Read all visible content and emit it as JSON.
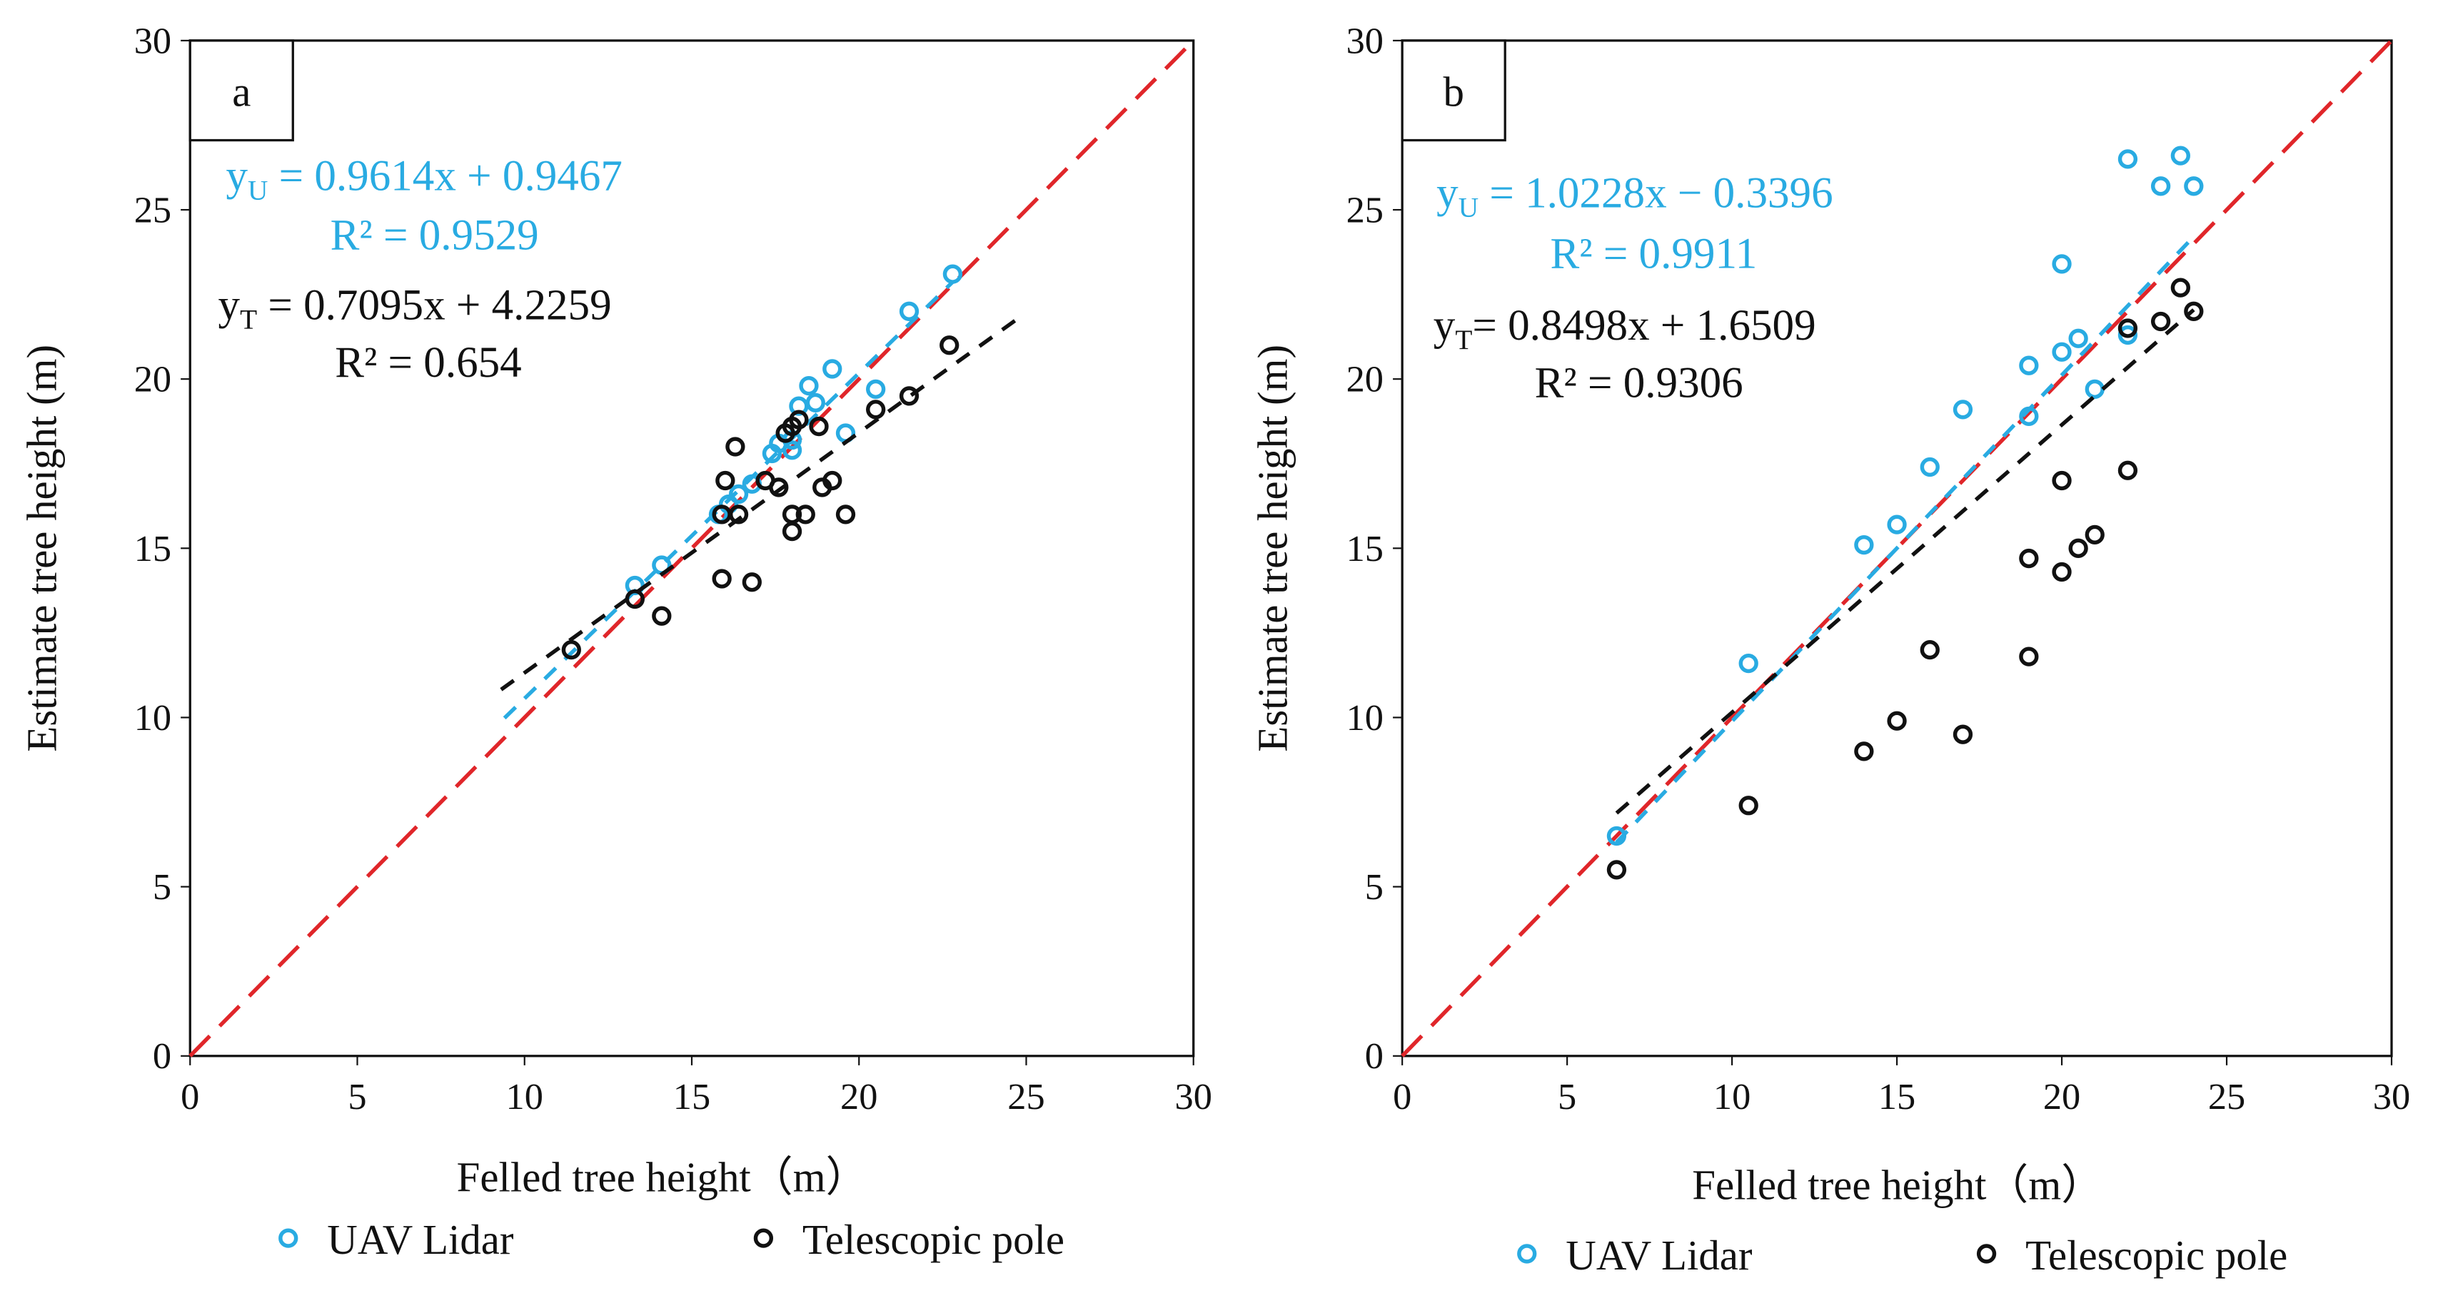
{
  "colors": {
    "uav": "#29abe2",
    "pole": "#111111",
    "one_to_one": "#e0262a"
  },
  "chart_data": [
    {
      "type": "scatter",
      "panel_label": "a",
      "xlabel": "Felled tree height（m）",
      "ylabel": "Estimate tree height (m)",
      "xlim": [
        0,
        30
      ],
      "ylim": [
        0,
        30
      ],
      "xticks": [
        "0",
        "5",
        "10",
        "15",
        "20",
        "25",
        "30"
      ],
      "yticks": [
        "0",
        "5",
        "10",
        "15",
        "20",
        "25",
        "30"
      ],
      "legend": {
        "placement": "bottom",
        "entries": [
          "UAV Lidar",
          "Telescopic pole"
        ]
      },
      "annotations": {
        "uav_eq_prefix": "y",
        "uav_eq_sub": "U",
        "uav_eq": " = 0.9614x + 0.9467",
        "uav_r2": "R² = 0.9529",
        "pole_eq_prefix": "y",
        "pole_eq_sub": "T",
        "pole_eq": " = 0.7095x + 4.2259",
        "pole_r2": "R² = 0.654"
      },
      "series": [
        {
          "name": "UAV Lidar",
          "fit": {
            "slope": 0.9614,
            "intercept": 0.9467,
            "x_range": [
              9.4,
              22.8
            ]
          },
          "points": [
            [
              13.3,
              13.9
            ],
            [
              14.1,
              14.5
            ],
            [
              15.8,
              16.0
            ],
            [
              16.1,
              16.3
            ],
            [
              16.4,
              16.6
            ],
            [
              16.8,
              16.9
            ],
            [
              17.4,
              17.8
            ],
            [
              17.6,
              18.1
            ],
            [
              18.0,
              18.2
            ],
            [
              18.0,
              17.9
            ],
            [
              18.2,
              19.2
            ],
            [
              18.5,
              19.8
            ],
            [
              18.7,
              19.3
            ],
            [
              19.2,
              20.3
            ],
            [
              19.6,
              18.4
            ],
            [
              20.5,
              19.7
            ],
            [
              21.5,
              22.0
            ],
            [
              22.8,
              23.1
            ]
          ]
        },
        {
          "name": "Telescopic pole",
          "fit": {
            "slope": 0.7095,
            "intercept": 4.2259,
            "x_range": [
              9.3,
              24.8
            ]
          },
          "points": [
            [
              11.4,
              12.0
            ],
            [
              13.3,
              13.5
            ],
            [
              14.1,
              13.0
            ],
            [
              15.9,
              14.1
            ],
            [
              16.8,
              14.0
            ],
            [
              16.0,
              17.0
            ],
            [
              16.3,
              18.0
            ],
            [
              15.9,
              16.0
            ],
            [
              16.4,
              16.0
            ],
            [
              17.2,
              17.0
            ],
            [
              17.6,
              16.8
            ],
            [
              17.8,
              18.4
            ],
            [
              18.0,
              18.6
            ],
            [
              18.2,
              18.8
            ],
            [
              18.0,
              16.0
            ],
            [
              18.0,
              15.5
            ],
            [
              18.4,
              16.0
            ],
            [
              18.9,
              16.8
            ],
            [
              19.2,
              17.0
            ],
            [
              19.6,
              16.0
            ],
            [
              18.8,
              18.6
            ],
            [
              20.5,
              19.1
            ],
            [
              21.5,
              19.5
            ],
            [
              22.7,
              21.0
            ]
          ]
        }
      ]
    },
    {
      "type": "scatter",
      "panel_label": "b",
      "xlabel": "Felled tree height（m）",
      "ylabel": "Estimate tree height (m)",
      "xlim": [
        0,
        30
      ],
      "ylim": [
        0,
        30
      ],
      "xticks": [
        "0",
        "5",
        "10",
        "15",
        "20",
        "25",
        "30"
      ],
      "yticks": [
        "0",
        "5",
        "10",
        "15",
        "20",
        "25",
        "30"
      ],
      "legend": {
        "placement": "bottom",
        "entries": [
          "UAV Lidar",
          "Telescopic pole"
        ]
      },
      "annotations": {
        "uav_eq_prefix": "y",
        "uav_eq_sub": "U",
        "uav_eq": " = 1.0228x − 0.3396",
        "uav_r2": "R² = 0.9911",
        "pole_eq_prefix": "y",
        "pole_eq_sub": "T",
        "pole_eq": "= 0.8498x + 1.6509",
        "pole_r2": "R² = 0.9306"
      },
      "series": [
        {
          "name": "UAV Lidar",
          "fit": {
            "slope": 1.0228,
            "intercept": -0.3396,
            "x_range": [
              6.5,
              24.0
            ]
          },
          "points": [
            [
              6.5,
              6.5
            ],
            [
              10.5,
              11.6
            ],
            [
              14,
              15.1
            ],
            [
              15,
              15.7
            ],
            [
              16,
              17.4
            ],
            [
              17,
              19.1
            ],
            [
              19,
              18.9
            ],
            [
              19,
              20.4
            ],
            [
              20,
              20.8
            ],
            [
              20,
              23.4
            ],
            [
              20.5,
              21.2
            ],
            [
              21,
              19.7
            ],
            [
              22,
              21.3
            ],
            [
              22,
              26.5
            ],
            [
              23,
              25.7
            ],
            [
              23.6,
              26.6
            ],
            [
              24,
              25.7
            ]
          ]
        },
        {
          "name": "Telescopic pole",
          "fit": {
            "slope": 0.8498,
            "intercept": 1.6509,
            "x_range": [
              6.5,
              24.0
            ]
          },
          "points": [
            [
              6.5,
              5.5
            ],
            [
              10.5,
              7.4
            ],
            [
              14,
              9.0
            ],
            [
              15,
              9.9
            ],
            [
              16,
              12.0
            ],
            [
              17,
              9.5
            ],
            [
              19,
              11.8
            ],
            [
              19,
              14.7
            ],
            [
              20,
              14.3
            ],
            [
              20,
              17.0
            ],
            [
              20.5,
              15.0
            ],
            [
              21,
              15.4
            ],
            [
              22,
              17.3
            ],
            [
              22,
              21.5
            ],
            [
              23,
              21.7
            ],
            [
              23.6,
              22.7
            ],
            [
              24,
              22.0
            ]
          ]
        }
      ]
    }
  ]
}
